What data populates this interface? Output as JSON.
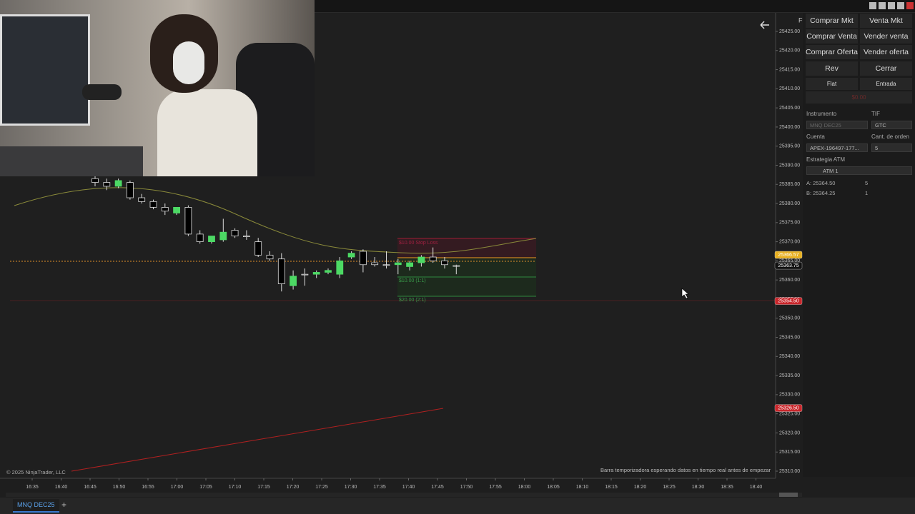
{
  "window": {
    "tab": "MNQ DEC25",
    "tab_add": "+",
    "chart_marker": "F"
  },
  "chart": {
    "price_ticks": [
      {
        "value": 25425,
        "label": "25425.00"
      },
      {
        "value": 25420,
        "label": "25420.00"
      },
      {
        "value": 25415,
        "label": "25415.00"
      },
      {
        "value": 25410,
        "label": "25410.00"
      },
      {
        "value": 25405,
        "label": "25405.00"
      },
      {
        "value": 25400,
        "label": "25400.00"
      },
      {
        "value": 25395,
        "label": "25395.00"
      },
      {
        "value": 25390,
        "label": "25390.00"
      },
      {
        "value": 25385,
        "label": "25385.00"
      },
      {
        "value": 25380,
        "label": "25380.00"
      },
      {
        "value": 25375,
        "label": "25375.00"
      },
      {
        "value": 25370,
        "label": "25370.00"
      },
      {
        "value": 25365,
        "label": "25365.00"
      },
      {
        "value": 25360,
        "label": "25360.00"
      },
      {
        "value": 25355,
        "label": "25355.00"
      },
      {
        "value": 25350,
        "label": "25350.00"
      },
      {
        "value": 25345,
        "label": "25345.00"
      },
      {
        "value": 25340,
        "label": "25340.00"
      },
      {
        "value": 25335,
        "label": "25335.00"
      },
      {
        "value": 25330,
        "label": "25330.00"
      },
      {
        "value": 25325,
        "label": "25325.00"
      },
      {
        "value": 25320,
        "label": "25320.00"
      },
      {
        "value": 25315,
        "label": "25315.00"
      },
      {
        "value": 25310,
        "label": "25310.00"
      }
    ],
    "time_labels": [
      "16:35",
      "16:40",
      "16:45",
      "16:50",
      "16:55",
      "17:00",
      "17:05",
      "17:10",
      "17:15",
      "17:20",
      "17:25",
      "17:30",
      "17:35",
      "17:40",
      "17:45",
      "17:50",
      "17:55",
      "18:00",
      "18:05",
      "18:10",
      "18:15",
      "18:20",
      "18:25",
      "18:30",
      "18:35",
      "18:40"
    ],
    "candles": [
      {
        "o": 25386.5,
        "h": 25387.5,
        "l": 25384.5,
        "c": 25385.5
      },
      {
        "o": 25385.5,
        "h": 25386.5,
        "l": 25383.5,
        "c": 25384.5
      },
      {
        "o": 25384.5,
        "h": 25386.5,
        "l": 25384.0,
        "c": 25386.0
      },
      {
        "o": 25385.5,
        "h": 25386.0,
        "l": 25381.0,
        "c": 25381.5
      },
      {
        "o": 25381.5,
        "h": 25382.5,
        "l": 25380.0,
        "c": 25380.5
      },
      {
        "o": 25380.5,
        "h": 25381.0,
        "l": 25378.5,
        "c": 25379.0
      },
      {
        "o": 25379.0,
        "h": 25380.0,
        "l": 25377.0,
        "c": 25378.0
      },
      {
        "o": 25377.5,
        "h": 25379.0,
        "l": 25377.0,
        "c": 25379.0
      },
      {
        "o": 25379.0,
        "h": 25379.5,
        "l": 25371.5,
        "c": 25372.0
      },
      {
        "o": 25372.0,
        "h": 25373.0,
        "l": 25369.5,
        "c": 25370.0
      },
      {
        "o": 25370.0,
        "h": 25371.5,
        "l": 25369.5,
        "c": 25371.5
      },
      {
        "o": 25370.5,
        "h": 25376.0,
        "l": 25370.0,
        "c": 25372.5
      },
      {
        "o": 25373.0,
        "h": 25373.5,
        "l": 25371.0,
        "c": 25371.5
      },
      {
        "o": 25371.5,
        "h": 25373.0,
        "l": 25370.5,
        "c": 25371.5
      },
      {
        "o": 25370.0,
        "h": 25371.0,
        "l": 25366.0,
        "c": 25366.5
      },
      {
        "o": 25366.5,
        "h": 25367.5,
        "l": 25365.0,
        "c": 25365.5
      },
      {
        "o": 25365.5,
        "h": 25367.0,
        "l": 25357.0,
        "c": 25359.0
      },
      {
        "o": 25358.5,
        "h": 25362.5,
        "l": 25357.5,
        "c": 25361.0
      },
      {
        "o": 25361.5,
        "h": 25363.0,
        "l": 25358.5,
        "c": 25361.5
      },
      {
        "o": 25361.5,
        "h": 25362.5,
        "l": 25360.5,
        "c": 25362.0
      },
      {
        "o": 25362.0,
        "h": 25363.0,
        "l": 25361.5,
        "c": 25362.5
      },
      {
        "o": 25361.5,
        "h": 25366.0,
        "l": 25360.5,
        "c": 25365.0
      },
      {
        "o": 25366.0,
        "h": 25367.5,
        "l": 25365.5,
        "c": 25367.0
      },
      {
        "o": 25367.5,
        "h": 25368.0,
        "l": 25362.0,
        "c": 25364.0
      },
      {
        "o": 25364.5,
        "h": 25366.0,
        "l": 25363.5,
        "c": 25364.0
      },
      {
        "o": 25364.0,
        "h": 25367.5,
        "l": 25363.0,
        "c": 25364.0
      },
      {
        "o": 25364.0,
        "h": 25365.5,
        "l": 25361.5,
        "c": 25364.5
      },
      {
        "o": 25363.5,
        "h": 25365.0,
        "l": 25362.5,
        "c": 25364.5
      },
      {
        "o": 25364.5,
        "h": 25366.5,
        "l": 25363.5,
        "c": 25366.0
      },
      {
        "o": 25366.0,
        "h": 25368.5,
        "l": 25364.5,
        "c": 25365.0
      },
      {
        "o": 25365.0,
        "h": 25366.0,
        "l": 25363.0,
        "c": 25364.0
      },
      {
        "o": 25363.75,
        "h": 25364.0,
        "l": 25361.5,
        "c": 25363.75
      }
    ],
    "price_tags": [
      {
        "value": 25366.57,
        "label": "25366.57",
        "color": "#e8b020"
      },
      {
        "value": 25363.75,
        "label": "25363.75",
        "color": "#111111"
      },
      {
        "value": 25354.5,
        "label": "25354.50",
        "color": "#c8262b"
      },
      {
        "value": 25326.5,
        "label": "25326.50",
        "color": "#c8262b"
      }
    ],
    "annotations": {
      "stop": "$10.00 Stop Loss",
      "target1": "$10.00 (1:1)",
      "target2": "$20.00 (2:1)"
    },
    "copyright": "© 2025 NinjaTrader, LLC",
    "status": "Barra temporizadora esperando datos en tiempo real antes de empezar"
  },
  "order_panel": {
    "buttons": [
      "Comprar Mkt",
      "Venta Mkt",
      "Comprar Venta",
      "Vender venta",
      "Comprar Oferta",
      "Vender oferta",
      "Rev",
      "Cerrar"
    ],
    "position": "Flat",
    "entry": "Entrada",
    "pnl": "$0.00",
    "instrument_label": "Instrumento",
    "instrument": "MNQ DEC25",
    "tif_label": "TIF",
    "tif": "GTC",
    "account_label": "Cuenta",
    "account": "APEX-196497-177...",
    "qty_label": "Cant. de orden",
    "qty": "5",
    "atm_label": "Estrategia ATM",
    "atm": "ATM 1",
    "ask": "A: 25364.50",
    "ask_size": "5",
    "bid": "B: 25364.25",
    "bid_size": "1"
  }
}
